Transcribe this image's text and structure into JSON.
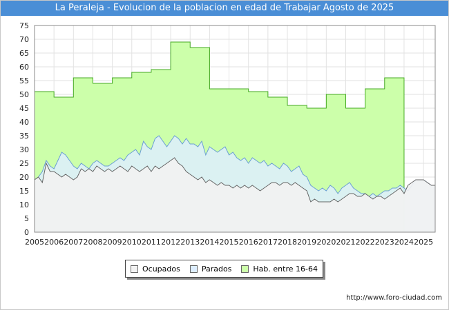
{
  "chart_data": {
    "type": "area",
    "title": "La Peraleja - Evolucion de la poblacion en edad de Trabajar Agosto de 2025",
    "xlabel": "",
    "ylabel": "",
    "xlim": [
      2005,
      2025.6
    ],
    "ylim": [
      0,
      75
    ],
    "yticks": [
      0,
      5,
      10,
      15,
      20,
      25,
      30,
      35,
      40,
      45,
      50,
      55,
      60,
      65,
      70,
      75
    ],
    "xticks": [
      2005,
      2006,
      2007,
      2008,
      2009,
      2010,
      2011,
      2012,
      2013,
      2014,
      2015,
      2016,
      2017,
      2018,
      2019,
      2020,
      2021,
      2022,
      2023,
      2024,
      2025
    ],
    "grid": true,
    "legend_position": "bottom",
    "series": [
      {
        "name": "Hab. entre 16-64",
        "color": "#ccffaa",
        "line_color": "#44aa22",
        "steps": [
          {
            "year": 2005,
            "value": 51
          },
          {
            "year": 2006,
            "value": 49
          },
          {
            "year": 2007,
            "value": 56
          },
          {
            "year": 2008,
            "value": 54
          },
          {
            "year": 2009,
            "value": 56
          },
          {
            "year": 2010,
            "value": 58
          },
          {
            "year": 2011,
            "value": 59
          },
          {
            "year": 2012,
            "value": 69
          },
          {
            "year": 2013,
            "value": 67
          },
          {
            "year": 2014,
            "value": 52
          },
          {
            "year": 2015,
            "value": 52
          },
          {
            "year": 2016,
            "value": 51
          },
          {
            "year": 2017,
            "value": 49
          },
          {
            "year": 2018,
            "value": 46
          },
          {
            "year": 2019,
            "value": 45
          },
          {
            "year": 2020,
            "value": 50
          },
          {
            "year": 2021,
            "value": 45
          },
          {
            "year": 2022,
            "value": 52
          },
          {
            "year": 2023,
            "value": 56
          }
        ],
        "end_year": 2024
      },
      {
        "name": "Parados",
        "color": "#ddeeff",
        "line_color": "#6a9fd4",
        "points": [
          [
            2005.0,
            19
          ],
          [
            2005.2,
            20
          ],
          [
            2005.4,
            22
          ],
          [
            2005.6,
            26
          ],
          [
            2005.8,
            24
          ],
          [
            2006.0,
            23
          ],
          [
            2006.2,
            26
          ],
          [
            2006.4,
            29
          ],
          [
            2006.6,
            28
          ],
          [
            2006.8,
            26
          ],
          [
            2007.0,
            24
          ],
          [
            2007.2,
            23
          ],
          [
            2007.4,
            25
          ],
          [
            2007.6,
            24
          ],
          [
            2007.8,
            23
          ],
          [
            2008.0,
            25
          ],
          [
            2008.2,
            26
          ],
          [
            2008.4,
            25
          ],
          [
            2008.6,
            24
          ],
          [
            2008.8,
            24
          ],
          [
            2009.0,
            25
          ],
          [
            2009.2,
            26
          ],
          [
            2009.4,
            27
          ],
          [
            2009.6,
            26
          ],
          [
            2009.8,
            28
          ],
          [
            2010.0,
            29
          ],
          [
            2010.2,
            30
          ],
          [
            2010.4,
            28
          ],
          [
            2010.6,
            33
          ],
          [
            2010.8,
            31
          ],
          [
            2011.0,
            30
          ],
          [
            2011.2,
            34
          ],
          [
            2011.4,
            35
          ],
          [
            2011.6,
            33
          ],
          [
            2011.8,
            31
          ],
          [
            2012.0,
            33
          ],
          [
            2012.2,
            35
          ],
          [
            2012.4,
            34
          ],
          [
            2012.6,
            32
          ],
          [
            2012.8,
            34
          ],
          [
            2013.0,
            32
          ],
          [
            2013.2,
            32
          ],
          [
            2013.4,
            31
          ],
          [
            2013.6,
            33
          ],
          [
            2013.8,
            28
          ],
          [
            2014.0,
            31
          ],
          [
            2014.2,
            30
          ],
          [
            2014.4,
            29
          ],
          [
            2014.6,
            30
          ],
          [
            2014.8,
            31
          ],
          [
            2015.0,
            28
          ],
          [
            2015.2,
            29
          ],
          [
            2015.4,
            27
          ],
          [
            2015.6,
            26
          ],
          [
            2015.8,
            27
          ],
          [
            2016.0,
            25
          ],
          [
            2016.2,
            27
          ],
          [
            2016.4,
            26
          ],
          [
            2016.6,
            25
          ],
          [
            2016.8,
            26
          ],
          [
            2017.0,
            24
          ],
          [
            2017.2,
            25
          ],
          [
            2017.4,
            24
          ],
          [
            2017.6,
            23
          ],
          [
            2017.8,
            25
          ],
          [
            2018.0,
            24
          ],
          [
            2018.2,
            22
          ],
          [
            2018.4,
            23
          ],
          [
            2018.6,
            24
          ],
          [
            2018.8,
            21
          ],
          [
            2019.0,
            20
          ],
          [
            2019.2,
            17
          ],
          [
            2019.4,
            16
          ],
          [
            2019.6,
            15
          ],
          [
            2019.8,
            16
          ],
          [
            2020.0,
            15
          ],
          [
            2020.2,
            17
          ],
          [
            2020.4,
            16
          ],
          [
            2020.6,
            14
          ],
          [
            2020.8,
            16
          ],
          [
            2021.0,
            17
          ],
          [
            2021.2,
            18
          ],
          [
            2021.4,
            16
          ],
          [
            2021.6,
            15
          ],
          [
            2021.8,
            14
          ],
          [
            2022.0,
            14
          ],
          [
            2022.2,
            13
          ],
          [
            2022.4,
            14
          ],
          [
            2022.6,
            13
          ],
          [
            2022.8,
            14
          ],
          [
            2023.0,
            15
          ],
          [
            2023.2,
            15
          ],
          [
            2023.4,
            16
          ],
          [
            2023.6,
            16
          ],
          [
            2023.8,
            17
          ],
          [
            2024.0,
            16
          ],
          [
            2024.2,
            15
          ],
          [
            2024.4,
            17
          ],
          [
            2024.6,
            19
          ],
          [
            2024.8,
            19
          ],
          [
            2025.0,
            19
          ],
          [
            2025.2,
            18
          ],
          [
            2025.4,
            17
          ],
          [
            2025.6,
            17
          ]
        ]
      },
      {
        "name": "Ocupados",
        "color": "#f2f2f2",
        "line_color": "#666666",
        "points": [
          [
            2005.0,
            19
          ],
          [
            2005.2,
            20
          ],
          [
            2005.4,
            18
          ],
          [
            2005.6,
            25
          ],
          [
            2005.8,
            22
          ],
          [
            2006.0,
            22
          ],
          [
            2006.2,
            21
          ],
          [
            2006.4,
            20
          ],
          [
            2006.6,
            21
          ],
          [
            2006.8,
            20
          ],
          [
            2007.0,
            19
          ],
          [
            2007.2,
            20
          ],
          [
            2007.4,
            23
          ],
          [
            2007.6,
            22
          ],
          [
            2007.8,
            23
          ],
          [
            2008.0,
            22
          ],
          [
            2008.2,
            24
          ],
          [
            2008.4,
            23
          ],
          [
            2008.6,
            22
          ],
          [
            2008.8,
            23
          ],
          [
            2009.0,
            22
          ],
          [
            2009.2,
            23
          ],
          [
            2009.4,
            24
          ],
          [
            2009.6,
            23
          ],
          [
            2009.8,
            22
          ],
          [
            2010.0,
            24
          ],
          [
            2010.2,
            23
          ],
          [
            2010.4,
            22
          ],
          [
            2010.6,
            23
          ],
          [
            2010.8,
            24
          ],
          [
            2011.0,
            22
          ],
          [
            2011.2,
            24
          ],
          [
            2011.4,
            23
          ],
          [
            2011.6,
            24
          ],
          [
            2011.8,
            25
          ],
          [
            2012.0,
            26
          ],
          [
            2012.2,
            27
          ],
          [
            2012.4,
            25
          ],
          [
            2012.6,
            24
          ],
          [
            2012.8,
            22
          ],
          [
            2013.0,
            21
          ],
          [
            2013.2,
            20
          ],
          [
            2013.4,
            19
          ],
          [
            2013.6,
            20
          ],
          [
            2013.8,
            18
          ],
          [
            2014.0,
            19
          ],
          [
            2014.2,
            18
          ],
          [
            2014.4,
            17
          ],
          [
            2014.6,
            18
          ],
          [
            2014.8,
            17
          ],
          [
            2015.0,
            17
          ],
          [
            2015.2,
            16
          ],
          [
            2015.4,
            17
          ],
          [
            2015.6,
            16
          ],
          [
            2015.8,
            17
          ],
          [
            2016.0,
            16
          ],
          [
            2016.2,
            17
          ],
          [
            2016.4,
            16
          ],
          [
            2016.6,
            15
          ],
          [
            2016.8,
            16
          ],
          [
            2017.0,
            17
          ],
          [
            2017.2,
            18
          ],
          [
            2017.4,
            18
          ],
          [
            2017.6,
            17
          ],
          [
            2017.8,
            18
          ],
          [
            2018.0,
            18
          ],
          [
            2018.2,
            17
          ],
          [
            2018.4,
            18
          ],
          [
            2018.6,
            17
          ],
          [
            2018.8,
            16
          ],
          [
            2019.0,
            15
          ],
          [
            2019.2,
            11
          ],
          [
            2019.4,
            12
          ],
          [
            2019.6,
            11
          ],
          [
            2019.8,
            11
          ],
          [
            2020.0,
            11
          ],
          [
            2020.2,
            11
          ],
          [
            2020.4,
            12
          ],
          [
            2020.6,
            11
          ],
          [
            2020.8,
            12
          ],
          [
            2021.0,
            13
          ],
          [
            2021.2,
            14
          ],
          [
            2021.4,
            14
          ],
          [
            2021.6,
            13
          ],
          [
            2021.8,
            13
          ],
          [
            2022.0,
            14
          ],
          [
            2022.2,
            13
          ],
          [
            2022.4,
            12
          ],
          [
            2022.6,
            13
          ],
          [
            2022.8,
            13
          ],
          [
            2023.0,
            12
          ],
          [
            2023.2,
            13
          ],
          [
            2023.4,
            14
          ],
          [
            2023.6,
            15
          ],
          [
            2023.8,
            16
          ],
          [
            2024.0,
            14
          ],
          [
            2024.2,
            17
          ],
          [
            2024.4,
            18
          ],
          [
            2024.6,
            19
          ],
          [
            2024.8,
            19
          ],
          [
            2025.0,
            19
          ],
          [
            2025.2,
            18
          ],
          [
            2025.4,
            17
          ],
          [
            2025.6,
            17
          ]
        ]
      }
    ]
  },
  "legend": {
    "items": [
      {
        "label": "Ocupados",
        "color": "#f2f2f2"
      },
      {
        "label": "Parados",
        "color": "#ddeeff"
      },
      {
        "label": "Hab. entre 16-64",
        "color": "#ccffaa"
      }
    ]
  },
  "source_text": "http://www.foro-ciudad.com"
}
